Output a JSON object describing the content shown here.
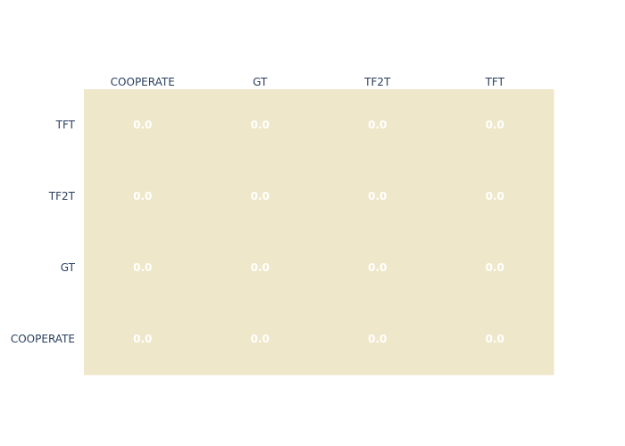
{
  "chart_data": {
    "type": "heatmap",
    "x_categories": [
      "COOPERATE",
      "GT",
      "TF2T",
      "TFT"
    ],
    "y_categories": [
      "TFT",
      "TF2T",
      "GT",
      "COOPERATE"
    ],
    "values": [
      [
        0.0,
        0.0,
        0.0,
        0.0
      ],
      [
        0.0,
        0.0,
        0.0,
        0.0
      ],
      [
        0.0,
        0.0,
        0.0,
        0.0
      ],
      [
        0.0,
        0.0,
        0.0,
        0.0
      ]
    ],
    "cell_labels": [
      [
        "0.0",
        "0.0",
        "0.0",
        "0.0"
      ],
      [
        "0.0",
        "0.0",
        "0.0",
        "0.0"
      ],
      [
        "0.0",
        "0.0",
        "0.0",
        "0.0"
      ],
      [
        "0.0",
        "0.0",
        "0.0",
        "0.0"
      ]
    ],
    "x_axis_side": "top",
    "fill_color": "#efe7c9",
    "label_color": "#ffffff",
    "tick_color": "#2a3f5f",
    "grid": false,
    "legend": "none"
  }
}
